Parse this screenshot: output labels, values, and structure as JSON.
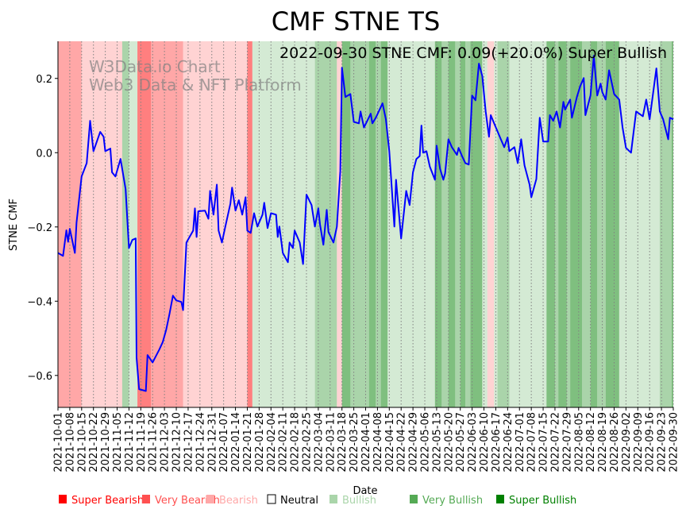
{
  "chart_data": {
    "type": "line",
    "title": "CMF STNE TS",
    "subtitle": "2022-09-30 STNE CMF: 0.09(+20.0%) Super Bullish",
    "watermark": [
      "W3Data.io Chart",
      "Web3 Data & NFT Platform"
    ],
    "xlabel": "Date",
    "ylabel": "STNE CMF",
    "x_start": "2021-10-01",
    "x_unit": "days since 2021-10-01",
    "xlim": [
      0,
      364
    ],
    "ylim": [
      -0.686,
      0.3
    ],
    "yticks": [
      0.2,
      0.0,
      -0.2,
      -0.4,
      -0.6
    ],
    "ytick_labels": [
      "0.2",
      "0.0",
      "−0.2",
      "−0.4",
      "−0.6"
    ],
    "xtick_labels": [
      "2021-10-01",
      "2021-10-08",
      "2021-10-15",
      "2021-10-22",
      "2021-10-29",
      "2021-11-05",
      "2021-11-12",
      "2021-11-19",
      "2021-11-26",
      "2021-12-03",
      "2021-12-10",
      "2021-12-17",
      "2021-12-24",
      "2021-12-31",
      "2022-01-07",
      "2022-01-14",
      "2022-01-21",
      "2022-01-28",
      "2022-02-04",
      "2022-02-11",
      "2022-02-18",
      "2022-02-25",
      "2022-03-04",
      "2022-03-11",
      "2022-03-18",
      "2022-03-25",
      "2022-04-01",
      "2022-04-08",
      "2022-04-15",
      "2022-04-22",
      "2022-04-29",
      "2022-05-06",
      "2022-05-13",
      "2022-05-20",
      "2022-05-27",
      "2022-06-03",
      "2022-06-10",
      "2022-06-17",
      "2022-06-24",
      "2022-07-01",
      "2022-07-08",
      "2022-07-15",
      "2022-07-22",
      "2022-07-29",
      "2022-08-05",
      "2022-08-12",
      "2022-08-19",
      "2022-08-26",
      "2022-09-02",
      "2022-09-09",
      "2022-09-16",
      "2022-09-23",
      "2022-09-30"
    ],
    "grid": "vertical dotted at weekly ticks",
    "series": [
      {
        "name": "STNE CMF",
        "color": "#0000ff",
        "points": [
          [
            0,
            -0.27
          ],
          [
            3,
            -0.278
          ],
          [
            5,
            -0.209
          ],
          [
            6,
            -0.24
          ],
          [
            7,
            -0.205
          ],
          [
            10,
            -0.27
          ],
          [
            11,
            -0.188
          ],
          [
            14,
            -0.064
          ],
          [
            17,
            -0.028
          ],
          [
            19,
            0.086
          ],
          [
            21,
            0.004
          ],
          [
            25,
            0.056
          ],
          [
            27,
            0.043
          ],
          [
            28,
            0.004
          ],
          [
            31,
            0.011
          ],
          [
            32,
            -0.053
          ],
          [
            34,
            -0.064
          ],
          [
            37,
            -0.017
          ],
          [
            40,
            -0.098
          ],
          [
            42,
            -0.257
          ],
          [
            44,
            -0.235
          ],
          [
            46,
            -0.231
          ],
          [
            46.5,
            -0.552
          ],
          [
            48,
            -0.637
          ],
          [
            52,
            -0.642
          ],
          [
            53,
            -0.545
          ],
          [
            56,
            -0.565
          ],
          [
            60,
            -0.53
          ],
          [
            62,
            -0.51
          ],
          [
            64,
            -0.477
          ],
          [
            66,
            -0.434
          ],
          [
            68,
            -0.385
          ],
          [
            70,
            -0.398
          ],
          [
            73,
            -0.402
          ],
          [
            74,
            -0.424
          ],
          [
            76,
            -0.242
          ],
          [
            80,
            -0.21
          ],
          [
            81,
            -0.15
          ],
          [
            82,
            -0.227
          ],
          [
            83,
            -0.158
          ],
          [
            87,
            -0.156
          ],
          [
            89,
            -0.178
          ],
          [
            90,
            -0.103
          ],
          [
            92,
            -0.167
          ],
          [
            94,
            -0.086
          ],
          [
            95,
            -0.21
          ],
          [
            97,
            -0.242
          ],
          [
            99,
            -0.199
          ],
          [
            102,
            -0.137
          ],
          [
            103,
            -0.094
          ],
          [
            105,
            -0.156
          ],
          [
            107,
            -0.128
          ],
          [
            109,
            -0.167
          ],
          [
            111,
            -0.12
          ],
          [
            112,
            -0.21
          ],
          [
            114,
            -0.216
          ],
          [
            116,
            -0.163
          ],
          [
            118,
            -0.199
          ],
          [
            121,
            -0.167
          ],
          [
            122,
            -0.135
          ],
          [
            124,
            -0.203
          ],
          [
            126,
            -0.163
          ],
          [
            129,
            -0.167
          ],
          [
            130,
            -0.227
          ],
          [
            131,
            -0.199
          ],
          [
            133,
            -0.27
          ],
          [
            136,
            -0.295
          ],
          [
            137,
            -0.242
          ],
          [
            139,
            -0.257
          ],
          [
            140,
            -0.21
          ],
          [
            143,
            -0.242
          ],
          [
            145,
            -0.3
          ],
          [
            147,
            -0.113
          ],
          [
            150,
            -0.141
          ],
          [
            152,
            -0.199
          ],
          [
            154,
            -0.15
          ],
          [
            155,
            -0.193
          ],
          [
            157,
            -0.248
          ],
          [
            159,
            -0.154
          ],
          [
            160,
            -0.214
          ],
          [
            163,
            -0.242
          ],
          [
            165,
            -0.199
          ],
          [
            167,
            -0.049
          ],
          [
            168,
            0.229
          ],
          [
            170,
            0.15
          ],
          [
            173,
            0.158
          ],
          [
            175,
            0.083
          ],
          [
            178,
            0.079
          ],
          [
            179,
            0.111
          ],
          [
            181,
            0.068
          ],
          [
            183,
            0.086
          ],
          [
            185,
            0.105
          ],
          [
            186,
            0.079
          ],
          [
            188,
            0.094
          ],
          [
            192,
            0.133
          ],
          [
            194,
            0.09
          ],
          [
            196,
            0.004
          ],
          [
            199,
            -0.199
          ],
          [
            200,
            -0.073
          ],
          [
            203,
            -0.231
          ],
          [
            206,
            -0.103
          ],
          [
            208,
            -0.141
          ],
          [
            210,
            -0.053
          ],
          [
            212,
            -0.017
          ],
          [
            214,
            -0.009
          ],
          [
            215,
            0.073
          ],
          [
            216,
            0.0
          ],
          [
            218,
            0.004
          ],
          [
            220,
            -0.038
          ],
          [
            223,
            -0.073
          ],
          [
            224,
            0.019
          ],
          [
            226,
            -0.043
          ],
          [
            228,
            -0.073
          ],
          [
            229,
            -0.056
          ],
          [
            231,
            0.036
          ],
          [
            233,
            0.015
          ],
          [
            236,
            -0.006
          ],
          [
            237,
            0.013
          ],
          [
            239,
            -0.009
          ],
          [
            241,
            -0.028
          ],
          [
            243,
            -0.032
          ],
          [
            245,
            0.154
          ],
          [
            247,
            0.141
          ],
          [
            249,
            0.24
          ],
          [
            251,
            0.207
          ],
          [
            253,
            0.111
          ],
          [
            255,
            0.043
          ],
          [
            256,
            0.101
          ],
          [
            258,
            0.079
          ],
          [
            262,
            0.036
          ],
          [
            264,
            0.015
          ],
          [
            266,
            0.041
          ],
          [
            267,
            0.004
          ],
          [
            270,
            0.015
          ],
          [
            272,
            -0.028
          ],
          [
            274,
            0.036
          ],
          [
            276,
            -0.034
          ],
          [
            279,
            -0.086
          ],
          [
            280,
            -0.12
          ],
          [
            283,
            -0.071
          ],
          [
            285,
            0.094
          ],
          [
            287,
            0.03
          ],
          [
            290,
            0.03
          ],
          [
            291,
            0.101
          ],
          [
            293,
            0.086
          ],
          [
            295,
            0.111
          ],
          [
            297,
            0.068
          ],
          [
            299,
            0.137
          ],
          [
            300,
            0.116
          ],
          [
            303,
            0.143
          ],
          [
            304,
            0.094
          ],
          [
            307,
            0.15
          ],
          [
            309,
            0.18
          ],
          [
            311,
            0.201
          ],
          [
            312,
            0.101
          ],
          [
            315,
            0.154
          ],
          [
            317,
            0.261
          ],
          [
            319,
            0.154
          ],
          [
            321,
            0.186
          ],
          [
            322,
            0.163
          ],
          [
            324,
            0.143
          ],
          [
            326,
            0.222
          ],
          [
            327,
            0.201
          ],
          [
            329,
            0.158
          ],
          [
            332,
            0.143
          ],
          [
            334,
            0.068
          ],
          [
            336,
            0.013
          ],
          [
            339,
            0.0
          ],
          [
            342,
            0.111
          ],
          [
            346,
            0.098
          ],
          [
            348,
            0.143
          ],
          [
            350,
            0.09
          ],
          [
            354,
            0.227
          ],
          [
            356,
            0.111
          ],
          [
            358,
            0.09
          ],
          [
            361,
            0.036
          ],
          [
            362,
            0.094
          ],
          [
            364,
            0.09
          ]
        ]
      }
    ],
    "regimes": [
      [
        0,
        14,
        "Very Bearish"
      ],
      [
        14,
        38,
        "Bearish"
      ],
      [
        38,
        42,
        "Very Bullish"
      ],
      [
        42,
        47,
        "Bullish"
      ],
      [
        47,
        55,
        "Super Bearish"
      ],
      [
        55,
        74,
        "Very Bearish"
      ],
      [
        74,
        112,
        "Bearish"
      ],
      [
        112,
        115,
        "Super Bearish"
      ],
      [
        115,
        152,
        "Bullish"
      ],
      [
        152,
        165,
        "Very Bullish"
      ],
      [
        165,
        168,
        "Bearish"
      ],
      [
        168,
        173,
        "Super Bullish"
      ],
      [
        173,
        184,
        "Very Bullish"
      ],
      [
        184,
        188,
        "Super Bullish"
      ],
      [
        188,
        191,
        "Very Bullish"
      ],
      [
        191,
        195,
        "Super Bullish"
      ],
      [
        195,
        223,
        "Bullish"
      ],
      [
        223,
        227,
        "Super Bullish"
      ],
      [
        227,
        231,
        "Very Bullish"
      ],
      [
        231,
        235,
        "Super Bullish"
      ],
      [
        235,
        238,
        "Very Bullish"
      ],
      [
        238,
        241,
        "Super Bullish"
      ],
      [
        241,
        244,
        "Very Bullish"
      ],
      [
        244,
        251,
        "Super Bullish"
      ],
      [
        251,
        254,
        "Bullish"
      ],
      [
        254,
        258,
        "Bearish"
      ],
      [
        258,
        260,
        "Bullish"
      ],
      [
        260,
        267,
        "Very Bullish"
      ],
      [
        267,
        289,
        "Bullish"
      ],
      [
        289,
        294,
        "Super Bullish"
      ],
      [
        294,
        296,
        "Very Bullish"
      ],
      [
        296,
        301,
        "Super Bullish"
      ],
      [
        301,
        303,
        "Very Bullish"
      ],
      [
        303,
        310,
        "Super Bullish"
      ],
      [
        310,
        315,
        "Very Bullish"
      ],
      [
        315,
        319,
        "Super Bullish"
      ],
      [
        319,
        324,
        "Very Bullish"
      ],
      [
        324,
        332,
        "Super Bullish"
      ],
      [
        332,
        356,
        "Bullish"
      ],
      [
        356,
        363,
        "Very Bullish"
      ],
      [
        363,
        364,
        "Super Bullish"
      ]
    ],
    "legend": {
      "placement": "bottom",
      "items": [
        {
          "label": "Super Bearish",
          "color": "#ff0000"
        },
        {
          "label": "Very Bearish",
          "color": "#ff5050"
        },
        {
          "label": "Bearish",
          "color": "#ffa8a8"
        },
        {
          "label": "Neutral",
          "color": "#ffffff"
        },
        {
          "label": "Bullish",
          "color": "#aad5aa"
        },
        {
          "label": "Very Bullish",
          "color": "#55aa55"
        },
        {
          "label": "Super Bullish",
          "color": "#008000"
        }
      ]
    }
  }
}
